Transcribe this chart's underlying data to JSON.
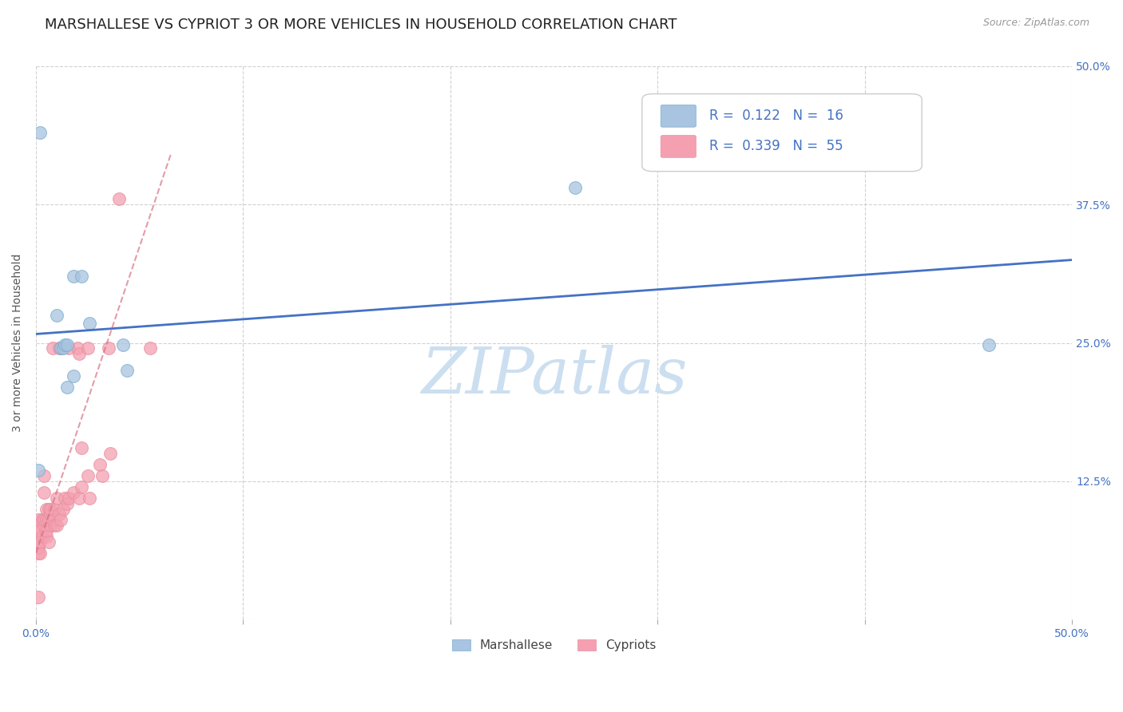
{
  "title": "MARSHALLESE VS CYPRIOT 3 OR MORE VEHICLES IN HOUSEHOLD CORRELATION CHART",
  "source": "Source: ZipAtlas.com",
  "ylabel_label": "3 or more Vehicles in Household",
  "x_min": 0.0,
  "x_max": 0.5,
  "y_min": 0.0,
  "y_max": 0.5,
  "x_ticks": [
    0.0,
    0.1,
    0.2,
    0.3,
    0.4,
    0.5
  ],
  "x_tick_labels_bottom": [
    "0.0%",
    "",
    "",
    "",
    "",
    "50.0%"
  ],
  "y_ticks": [
    0.0,
    0.125,
    0.25,
    0.375,
    0.5
  ],
  "y_tick_labels_right": [
    "",
    "12.5%",
    "25.0%",
    "37.5%",
    "50.0%"
  ],
  "marshallese_color": "#a8c4e0",
  "cypriot_color": "#f4a0b0",
  "marshallese_edge_color": "#7aaed0",
  "cypriot_edge_color": "#e890a0",
  "marshallese_line_color": "#4472c4",
  "cypriot_line_color": "#d4687a",
  "marshallese_R": "0.122",
  "marshallese_N": "16",
  "cypriot_R": "0.339",
  "cypriot_N": "55",
  "legend_label_marshallese": "Marshallese",
  "legend_label_cypriot": "Cypriots",
  "marshallese_x": [
    0.001,
    0.002,
    0.01,
    0.012,
    0.013,
    0.014,
    0.015,
    0.015,
    0.018,
    0.018,
    0.022,
    0.026,
    0.042,
    0.044,
    0.26,
    0.46
  ],
  "marshallese_y": [
    0.135,
    0.44,
    0.275,
    0.245,
    0.245,
    0.248,
    0.21,
    0.248,
    0.31,
    0.22,
    0.31,
    0.268,
    0.248,
    0.225,
    0.39,
    0.248
  ],
  "cypriot_x": [
    0.001,
    0.001,
    0.001,
    0.001,
    0.001,
    0.001,
    0.002,
    0.002,
    0.002,
    0.003,
    0.003,
    0.004,
    0.004,
    0.004,
    0.004,
    0.005,
    0.005,
    0.005,
    0.005,
    0.006,
    0.006,
    0.006,
    0.007,
    0.007,
    0.007,
    0.008,
    0.008,
    0.009,
    0.009,
    0.01,
    0.01,
    0.011,
    0.011,
    0.012,
    0.012,
    0.013,
    0.014,
    0.015,
    0.016,
    0.016,
    0.018,
    0.02,
    0.021,
    0.021,
    0.022,
    0.022,
    0.025,
    0.025,
    0.026,
    0.031,
    0.032,
    0.035,
    0.036,
    0.04,
    0.055
  ],
  "cypriot_y": [
    0.02,
    0.06,
    0.065,
    0.07,
    0.08,
    0.09,
    0.06,
    0.07,
    0.08,
    0.075,
    0.09,
    0.085,
    0.09,
    0.115,
    0.13,
    0.075,
    0.08,
    0.09,
    0.1,
    0.07,
    0.09,
    0.1,
    0.085,
    0.095,
    0.1,
    0.09,
    0.245,
    0.085,
    0.1,
    0.085,
    0.11,
    0.095,
    0.245,
    0.09,
    0.245,
    0.1,
    0.11,
    0.105,
    0.11,
    0.245,
    0.115,
    0.245,
    0.11,
    0.24,
    0.12,
    0.155,
    0.245,
    0.13,
    0.11,
    0.14,
    0.13,
    0.245,
    0.15,
    0.38,
    0.245
  ],
  "background_color": "#ffffff",
  "grid_color": "#cccccc",
  "watermark_text": "ZIPatlas",
  "watermark_color": "#ccdff0",
  "title_fontsize": 13,
  "axis_label_fontsize": 10,
  "tick_fontsize": 10,
  "legend_fontsize": 12,
  "source_fontsize": 9,
  "marshallese_trend_x": [
    0.0,
    0.5
  ],
  "marshallese_trend_y": [
    0.258,
    0.325
  ],
  "cypriot_trend_x_start": 0.0,
  "cypriot_trend_x_end": 0.065,
  "cypriot_trend_y_start": 0.06,
  "cypriot_trend_y_end": 0.42,
  "tick_color": "#4472c4",
  "label_color": "#555555"
}
